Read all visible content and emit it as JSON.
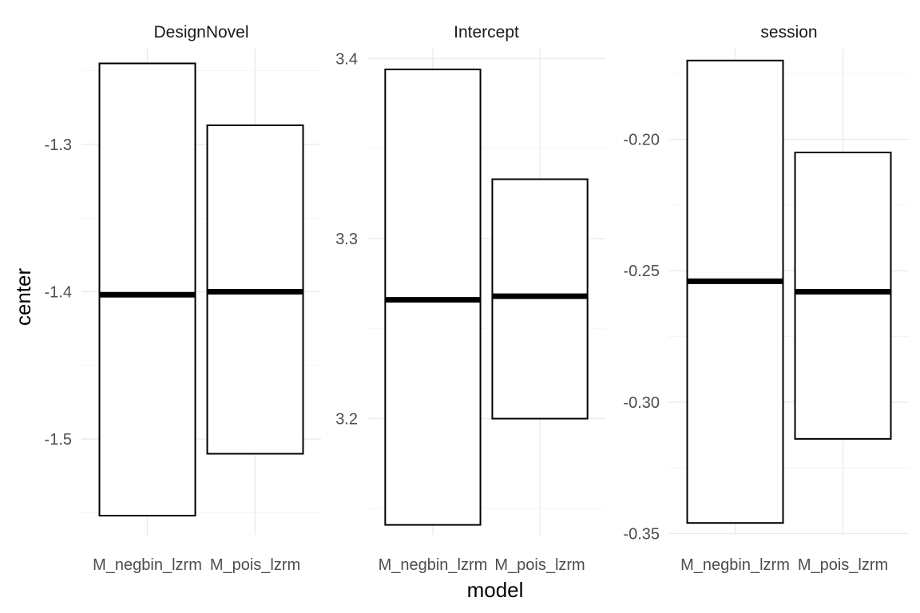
{
  "chart_data": {
    "type": "crossbar",
    "xlabel": "model",
    "ylabel": "center",
    "categories": [
      "M_negbin_lzrm",
      "M_pois_lzrm"
    ],
    "facets": [
      {
        "title": "DesignNovel",
        "ylim": [
          -1.565,
          -1.235
        ],
        "yticks": [
          -1.5,
          -1.4,
          -1.3
        ],
        "ytick_labels": [
          "-1.5",
          "-1.4",
          "-1.3"
        ],
        "bars": [
          {
            "category": "M_negbin_lzrm",
            "lower": -1.552,
            "center": -1.402,
            "upper": -1.245
          },
          {
            "category": "M_pois_lzrm",
            "lower": -1.51,
            "center": -1.4,
            "upper": -1.287
          }
        ]
      },
      {
        "title": "Intercept",
        "ylim": [
          3.1355,
          3.4055
        ],
        "yticks": [
          3.2,
          3.3,
          3.4
        ],
        "ytick_labels": [
          "3.2",
          "3.3",
          "3.4"
        ],
        "bars": [
          {
            "category": "M_negbin_lzrm",
            "lower": 3.141,
            "center": 3.266,
            "upper": 3.394
          },
          {
            "category": "M_pois_lzrm",
            "lower": 3.2,
            "center": 3.268,
            "upper": 3.333
          }
        ]
      },
      {
        "title": "session",
        "ylim": [
          -0.3505,
          -0.1655
        ],
        "yticks": [
          -0.35,
          -0.3,
          -0.25,
          -0.2
        ],
        "ytick_labels": [
          "-0.35",
          "-0.30",
          "-0.25",
          "-0.20"
        ],
        "bars": [
          {
            "category": "M_negbin_lzrm",
            "lower": -0.346,
            "center": -0.254,
            "upper": -0.17
          },
          {
            "category": "M_pois_lzrm",
            "lower": -0.314,
            "center": -0.258,
            "upper": -0.205
          }
        ]
      }
    ],
    "grid": true,
    "legend": "none"
  }
}
